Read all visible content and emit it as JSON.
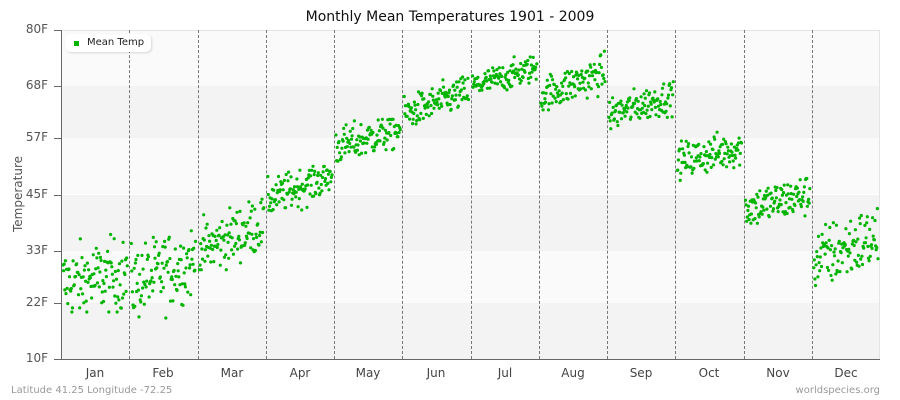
{
  "chart_data": {
    "type": "scatter",
    "title": "Monthly Mean Temperatures 1901 - 2009",
    "xlabel": "",
    "ylabel": "Temperature",
    "ylim": [
      10,
      80
    ],
    "y_ticks": [
      "10F",
      "22F",
      "33F",
      "45F",
      "57F",
      "68F",
      "80F"
    ],
    "y_tick_values": [
      10,
      22,
      33,
      45,
      57,
      68,
      80
    ],
    "categories": [
      "Jan",
      "Feb",
      "Mar",
      "Apr",
      "May",
      "Jun",
      "Jul",
      "Aug",
      "Sep",
      "Oct",
      "Nov",
      "Dec"
    ],
    "legend": [
      {
        "name": "Mean Temp",
        "color": "#00b400"
      }
    ],
    "legend_position": "top-left",
    "grid": {
      "horizontal_bands": true,
      "vertical_dashed_month_dividers": true
    },
    "series": [
      {
        "name": "Mean Temp",
        "points_per_month": 109,
        "monthly_ranges": [
          {
            "month": "Jan",
            "start": 26,
            "end": 28,
            "min": 20,
            "max": 38,
            "spread": 4
          },
          {
            "month": "Feb",
            "start": 26,
            "end": 31,
            "min": 18,
            "max": 38,
            "spread": 4
          },
          {
            "month": "Mar",
            "start": 33,
            "end": 39,
            "min": 29,
            "max": 44,
            "spread": 3
          },
          {
            "month": "Apr",
            "start": 44,
            "end": 49,
            "min": 41,
            "max": 51,
            "spread": 2
          },
          {
            "month": "May",
            "start": 55,
            "end": 59,
            "min": 51,
            "max": 61,
            "spread": 2
          },
          {
            "month": "Jun",
            "start": 62,
            "end": 67,
            "min": 60,
            "max": 70,
            "spread": 1.8
          },
          {
            "month": "Jul",
            "start": 68,
            "end": 72,
            "min": 65,
            "max": 76,
            "spread": 1.5
          },
          {
            "month": "Aug",
            "start": 66,
            "end": 71,
            "min": 63,
            "max": 77,
            "spread": 2
          },
          {
            "month": "Sep",
            "start": 62,
            "end": 66,
            "min": 59,
            "max": 69,
            "spread": 1.8
          },
          {
            "month": "Oct",
            "start": 52,
            "end": 55,
            "min": 48,
            "max": 60,
            "spread": 2
          },
          {
            "month": "Nov",
            "start": 42,
            "end": 45,
            "min": 37,
            "max": 51,
            "spread": 2.2
          },
          {
            "month": "Dec",
            "start": 31,
            "end": 36,
            "min": 23,
            "max": 42,
            "spread": 3.5
          }
        ]
      }
    ]
  },
  "footer": {
    "location": "Latitude 41.25 Longitude -72.25",
    "source": "worldspecies.org"
  },
  "colors": {
    "point": "#00b400",
    "band_light": "#fafafa",
    "band_dark": "#f3f3f3"
  }
}
